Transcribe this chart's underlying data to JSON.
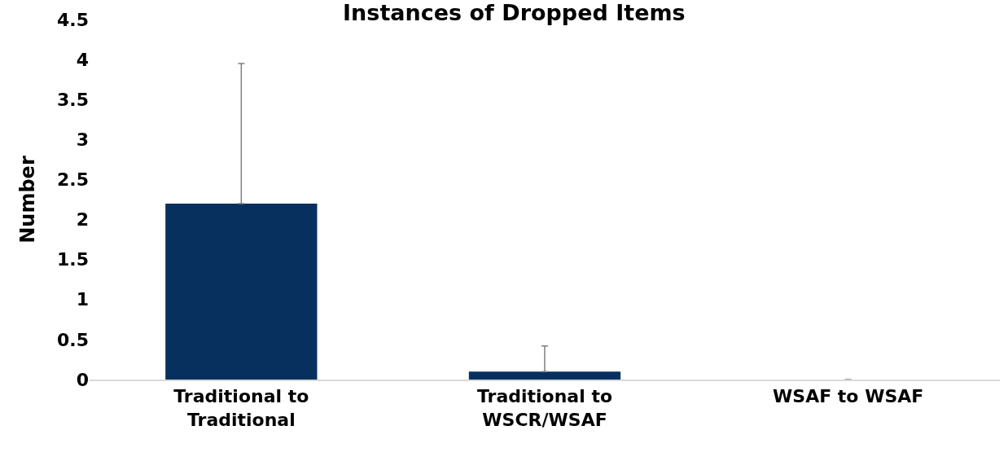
{
  "chart_data": {
    "type": "bar",
    "title": "Instances of Dropped Items",
    "ylabel": "Number",
    "categories": [
      "Traditional to Traditional",
      "Traditional to WSCR/WSAF",
      "WSAF to WSAF"
    ],
    "values": [
      2.2,
      0.1,
      0
    ],
    "errors": [
      [
        2.2,
        3.95
      ],
      [
        0.1,
        0.42
      ],
      null
    ],
    "color": "#08305e",
    "ylim": [
      0,
      4.5
    ],
    "yticks": [
      0,
      0.5,
      1,
      1.5,
      2,
      2.5,
      3,
      3.5,
      4,
      4.5
    ],
    "grid": false
  }
}
